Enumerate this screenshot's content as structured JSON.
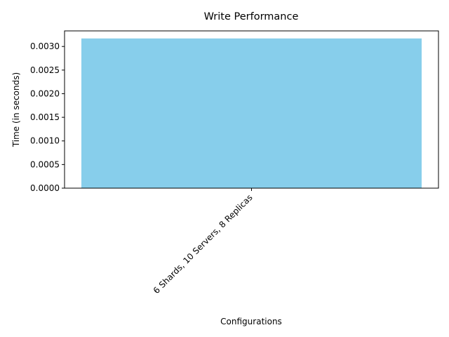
{
  "chart_data": {
    "type": "bar",
    "title": "Write Performance",
    "xlabel": "Configurations",
    "ylabel": "Time (in seconds)",
    "categories": [
      "6 Shards, 10 Servers, 8 Replicas"
    ],
    "values": [
      0.00317
    ],
    "ylim": [
      0,
      0.00333
    ],
    "yticks": [
      "0.0000",
      "0.0005",
      "0.0010",
      "0.0015",
      "0.0020",
      "0.0025",
      "0.0030"
    ],
    "ytick_values": [
      0,
      0.0005,
      0.001,
      0.0015,
      0.002,
      0.0025,
      0.003
    ],
    "bar_color": "#87ceeb",
    "grid": false,
    "legend": false
  }
}
